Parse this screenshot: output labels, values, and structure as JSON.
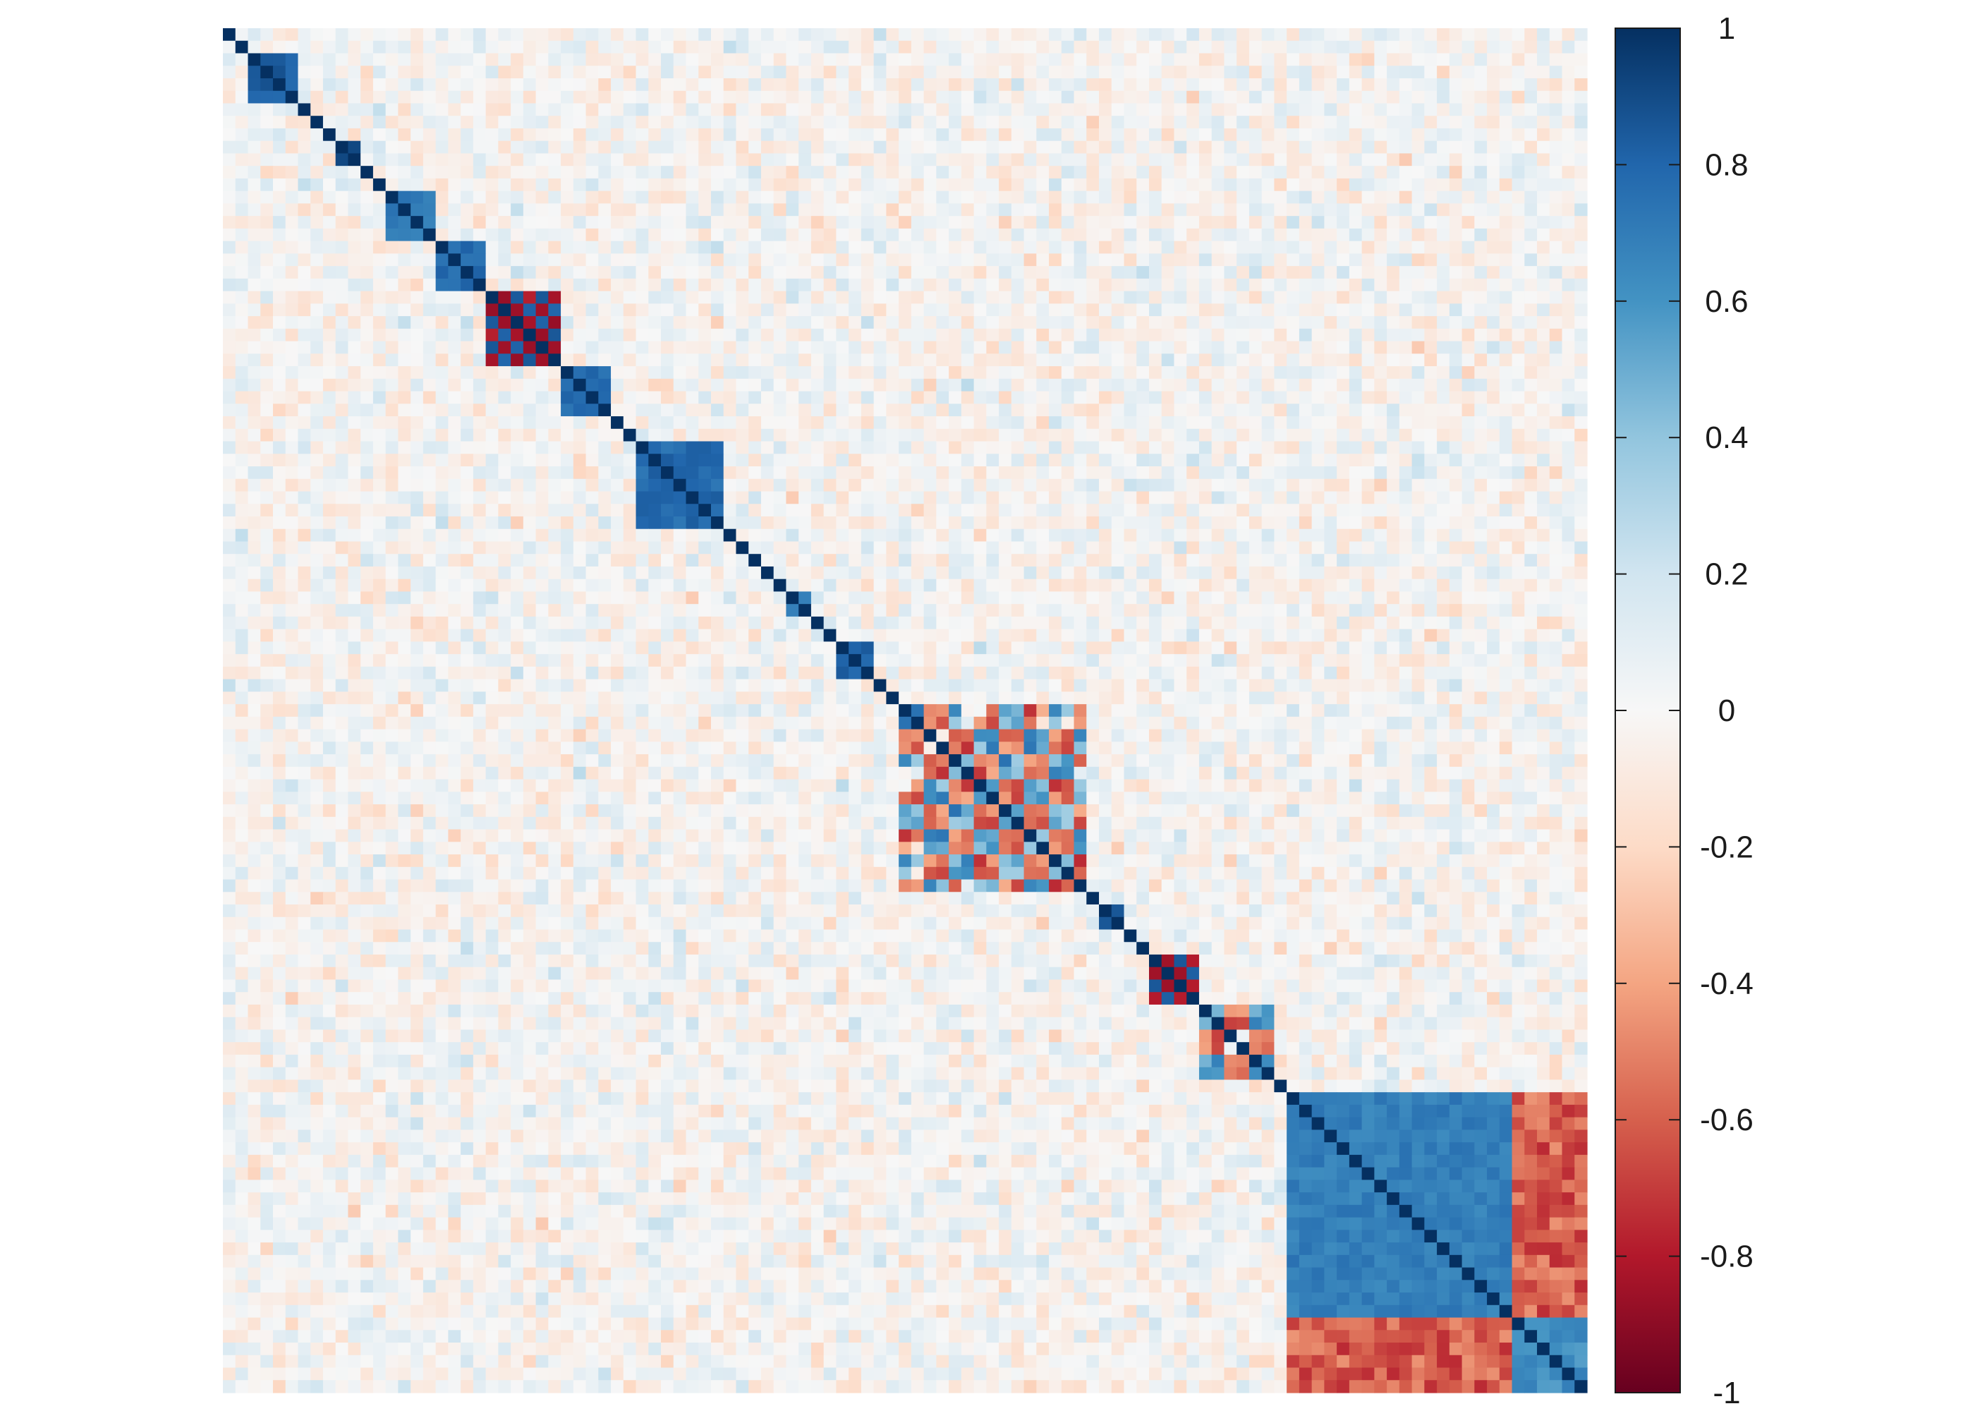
{
  "chart_data": {
    "type": "heatmap",
    "title": "",
    "xlabel": "",
    "ylabel": "",
    "matrix_kind": "correlation matrix",
    "n_variables": 109,
    "value_range": [
      -1,
      1
    ],
    "axis_labels_shown": false,
    "grid": false,
    "legend_placement": "right",
    "colorbar": {
      "ticks": [
        1,
        0.8,
        0.6,
        0.4,
        0.2,
        0,
        -0.2,
        -0.4,
        -0.6,
        -0.8,
        -1
      ],
      "tick_labels": [
        "1",
        "0.8",
        "0.6",
        "0.4",
        "0.2",
        "0",
        "-0.2",
        "-0.4",
        "-0.6",
        "-0.8",
        "-1"
      ]
    },
    "colorscale": [
      {
        "value": -1.0,
        "color": "#67001f"
      },
      {
        "value": -0.8,
        "color": "#b2182b"
      },
      {
        "value": -0.6,
        "color": "#d6604d"
      },
      {
        "value": -0.4,
        "color": "#f4a582"
      },
      {
        "value": -0.2,
        "color": "#fddbc7"
      },
      {
        "value": 0.0,
        "color": "#f7f7f7"
      },
      {
        "value": 0.2,
        "color": "#d1e5f0"
      },
      {
        "value": 0.4,
        "color": "#92c5de"
      },
      {
        "value": 0.6,
        "color": "#4393c3"
      },
      {
        "value": 0.8,
        "color": "#2166ac"
      },
      {
        "value": 1.0,
        "color": "#053061"
      }
    ],
    "diagonal_value": 1,
    "blocks": [
      {
        "start": 2,
        "size": 4,
        "pattern": "uniform",
        "value": 0.9
      },
      {
        "start": 9,
        "size": 2,
        "pattern": "uniform",
        "value": 0.92
      },
      {
        "start": 13,
        "size": 4,
        "pattern": "uniform",
        "value": 0.78
      },
      {
        "start": 17,
        "size": 4,
        "pattern": "uniform",
        "value": 0.82
      },
      {
        "start": 21,
        "size": 6,
        "pattern": "alternating",
        "value": 0.88
      },
      {
        "start": 27,
        "size": 4,
        "pattern": "uniform",
        "value": 0.82
      },
      {
        "start": 33,
        "size": 7,
        "pattern": "uniform",
        "value": 0.84
      },
      {
        "start": 45,
        "size": 2,
        "pattern": "uniform",
        "value": 0.72
      },
      {
        "start": 49,
        "size": 3,
        "pattern": "uniform",
        "value": 0.88
      },
      {
        "start": 54,
        "size": 15,
        "pattern": "mixed",
        "value": 0.75
      },
      {
        "start": 70,
        "size": 2,
        "pattern": "uniform",
        "value": 0.88
      },
      {
        "start": 74,
        "size": 4,
        "pattern": "alternating",
        "value": 0.88
      },
      {
        "start": 78,
        "size": 6,
        "pattern": "mixed",
        "value": 0.7
      },
      {
        "start": 85,
        "size": 18,
        "pattern": "uniform",
        "value": 0.75
      },
      {
        "start": 85,
        "size": 24,
        "pattern": "split",
        "split_at": 103,
        "cross_value": -0.6,
        "tail_value": 0.7
      }
    ]
  }
}
